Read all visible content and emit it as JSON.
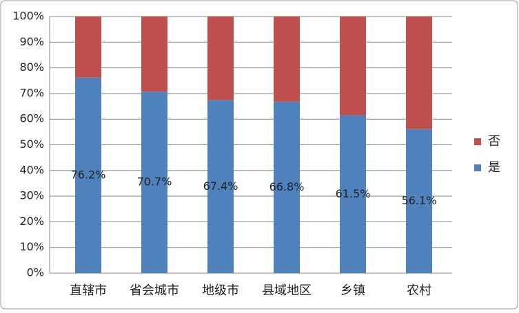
{
  "chart_data": {
    "type": "stacked_bar",
    "categories": [
      "直辖市",
      "省会城市",
      "地级市",
      "县域地区",
      "乡镇",
      "农村"
    ],
    "series": [
      {
        "name": "是",
        "color": "#4f81bd",
        "values": [
          76.2,
          70.7,
          67.4,
          66.8,
          61.5,
          56.1
        ],
        "value_labels": [
          "76.2%",
          "70.7%",
          "67.4%",
          "66.8%",
          "61.5%",
          "56.1%"
        ]
      },
      {
        "name": "否",
        "color": "#c0504d",
        "values": [
          23.8,
          29.3,
          32.6,
          33.2,
          38.5,
          43.9
        ]
      }
    ],
    "ylim": [
      0,
      100
    ],
    "yticks": [
      {
        "value": 0,
        "label": "0%"
      },
      {
        "value": 10,
        "label": "10%"
      },
      {
        "value": 20,
        "label": "20%"
      },
      {
        "value": 30,
        "label": "30%"
      },
      {
        "value": 40,
        "label": "40%"
      },
      {
        "value": 50,
        "label": "50%"
      },
      {
        "value": 60,
        "label": "60%"
      },
      {
        "value": 70,
        "label": "70%"
      },
      {
        "value": 80,
        "label": "80%"
      },
      {
        "value": 90,
        "label": "90%"
      },
      {
        "value": 100,
        "label": "100%"
      }
    ],
    "grid": true,
    "legend": "right"
  }
}
